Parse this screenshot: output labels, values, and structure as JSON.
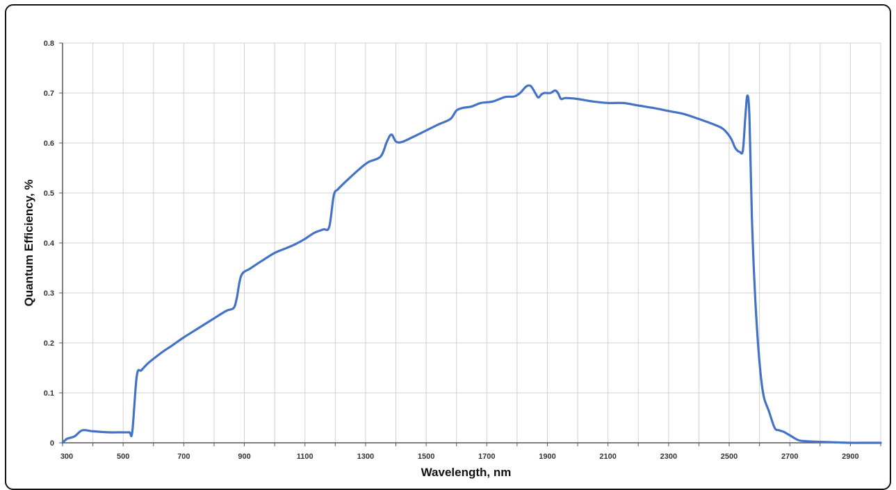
{
  "chart_data": {
    "type": "line",
    "title": "",
    "xlabel": "Wavelength, nm",
    "ylabel": "Quantum Efficiency, %",
    "xlim": [
      300,
      3000
    ],
    "ylim": [
      0,
      0.8
    ],
    "grid": true,
    "legend": "none",
    "x_ticks": [
      "300",
      "500",
      "700",
      "900",
      "1100",
      "1300",
      "1500",
      "1700",
      "1900",
      "2100",
      "2300",
      "2500",
      "2700",
      "2900"
    ],
    "y_ticks": [
      "0",
      "0.1",
      "0.2",
      "0.3",
      "0.4",
      "0.5",
      "0.6",
      "0.7",
      "0.8"
    ],
    "colors": {
      "line": "#4472C4",
      "grid": "#d0d0d0",
      "axis": "#555555"
    },
    "series": [
      {
        "x": [
          300,
          315,
          340,
          365,
          400,
          450,
          490,
          520,
          530,
          545,
          560,
          580,
          600,
          630,
          660,
          700,
          750,
          800,
          840,
          865,
          875,
          890,
          920,
          960,
          1000,
          1040,
          1070,
          1100,
          1130,
          1160,
          1180,
          1195,
          1210,
          1240,
          1280,
          1310,
          1350,
          1370,
          1385,
          1400,
          1420,
          1460,
          1500,
          1540,
          1580,
          1600,
          1620,
          1650,
          1680,
          1720,
          1760,
          1790,
          1810,
          1830,
          1845,
          1860,
          1870,
          1880,
          1890,
          1910,
          1925,
          1935,
          1945,
          1960,
          2000,
          2050,
          2100,
          2150,
          2200,
          2250,
          2300,
          2350,
          2400,
          2450,
          2480,
          2505,
          2520,
          2535,
          2545,
          2553,
          2560,
          2567,
          2575,
          2585,
          2595,
          2605,
          2615,
          2630,
          2650,
          2665,
          2680,
          2700,
          2730,
          2760,
          2800,
          2850,
          2900,
          2950,
          3000
        ],
        "y": [
          0.0,
          0.008,
          0.013,
          0.025,
          0.023,
          0.021,
          0.021,
          0.021,
          0.022,
          0.134,
          0.145,
          0.158,
          0.168,
          0.182,
          0.194,
          0.211,
          0.23,
          0.249,
          0.264,
          0.27,
          0.29,
          0.335,
          0.349,
          0.365,
          0.38,
          0.39,
          0.398,
          0.408,
          0.42,
          0.427,
          0.432,
          0.495,
          0.508,
          0.526,
          0.548,
          0.562,
          0.573,
          0.602,
          0.617,
          0.603,
          0.602,
          0.613,
          0.625,
          0.637,
          0.648,
          0.665,
          0.67,
          0.673,
          0.68,
          0.683,
          0.692,
          0.693,
          0.7,
          0.713,
          0.714,
          0.7,
          0.691,
          0.697,
          0.7,
          0.7,
          0.705,
          0.7,
          0.688,
          0.69,
          0.688,
          0.683,
          0.68,
          0.68,
          0.675,
          0.67,
          0.664,
          0.658,
          0.648,
          0.637,
          0.628,
          0.61,
          0.59,
          0.582,
          0.585,
          0.65,
          0.695,
          0.65,
          0.45,
          0.3,
          0.2,
          0.13,
          0.09,
          0.065,
          0.03,
          0.025,
          0.022,
          0.015,
          0.005,
          0.003,
          0.002,
          0.001,
          0.0,
          0.0,
          0.0
        ]
      }
    ]
  }
}
